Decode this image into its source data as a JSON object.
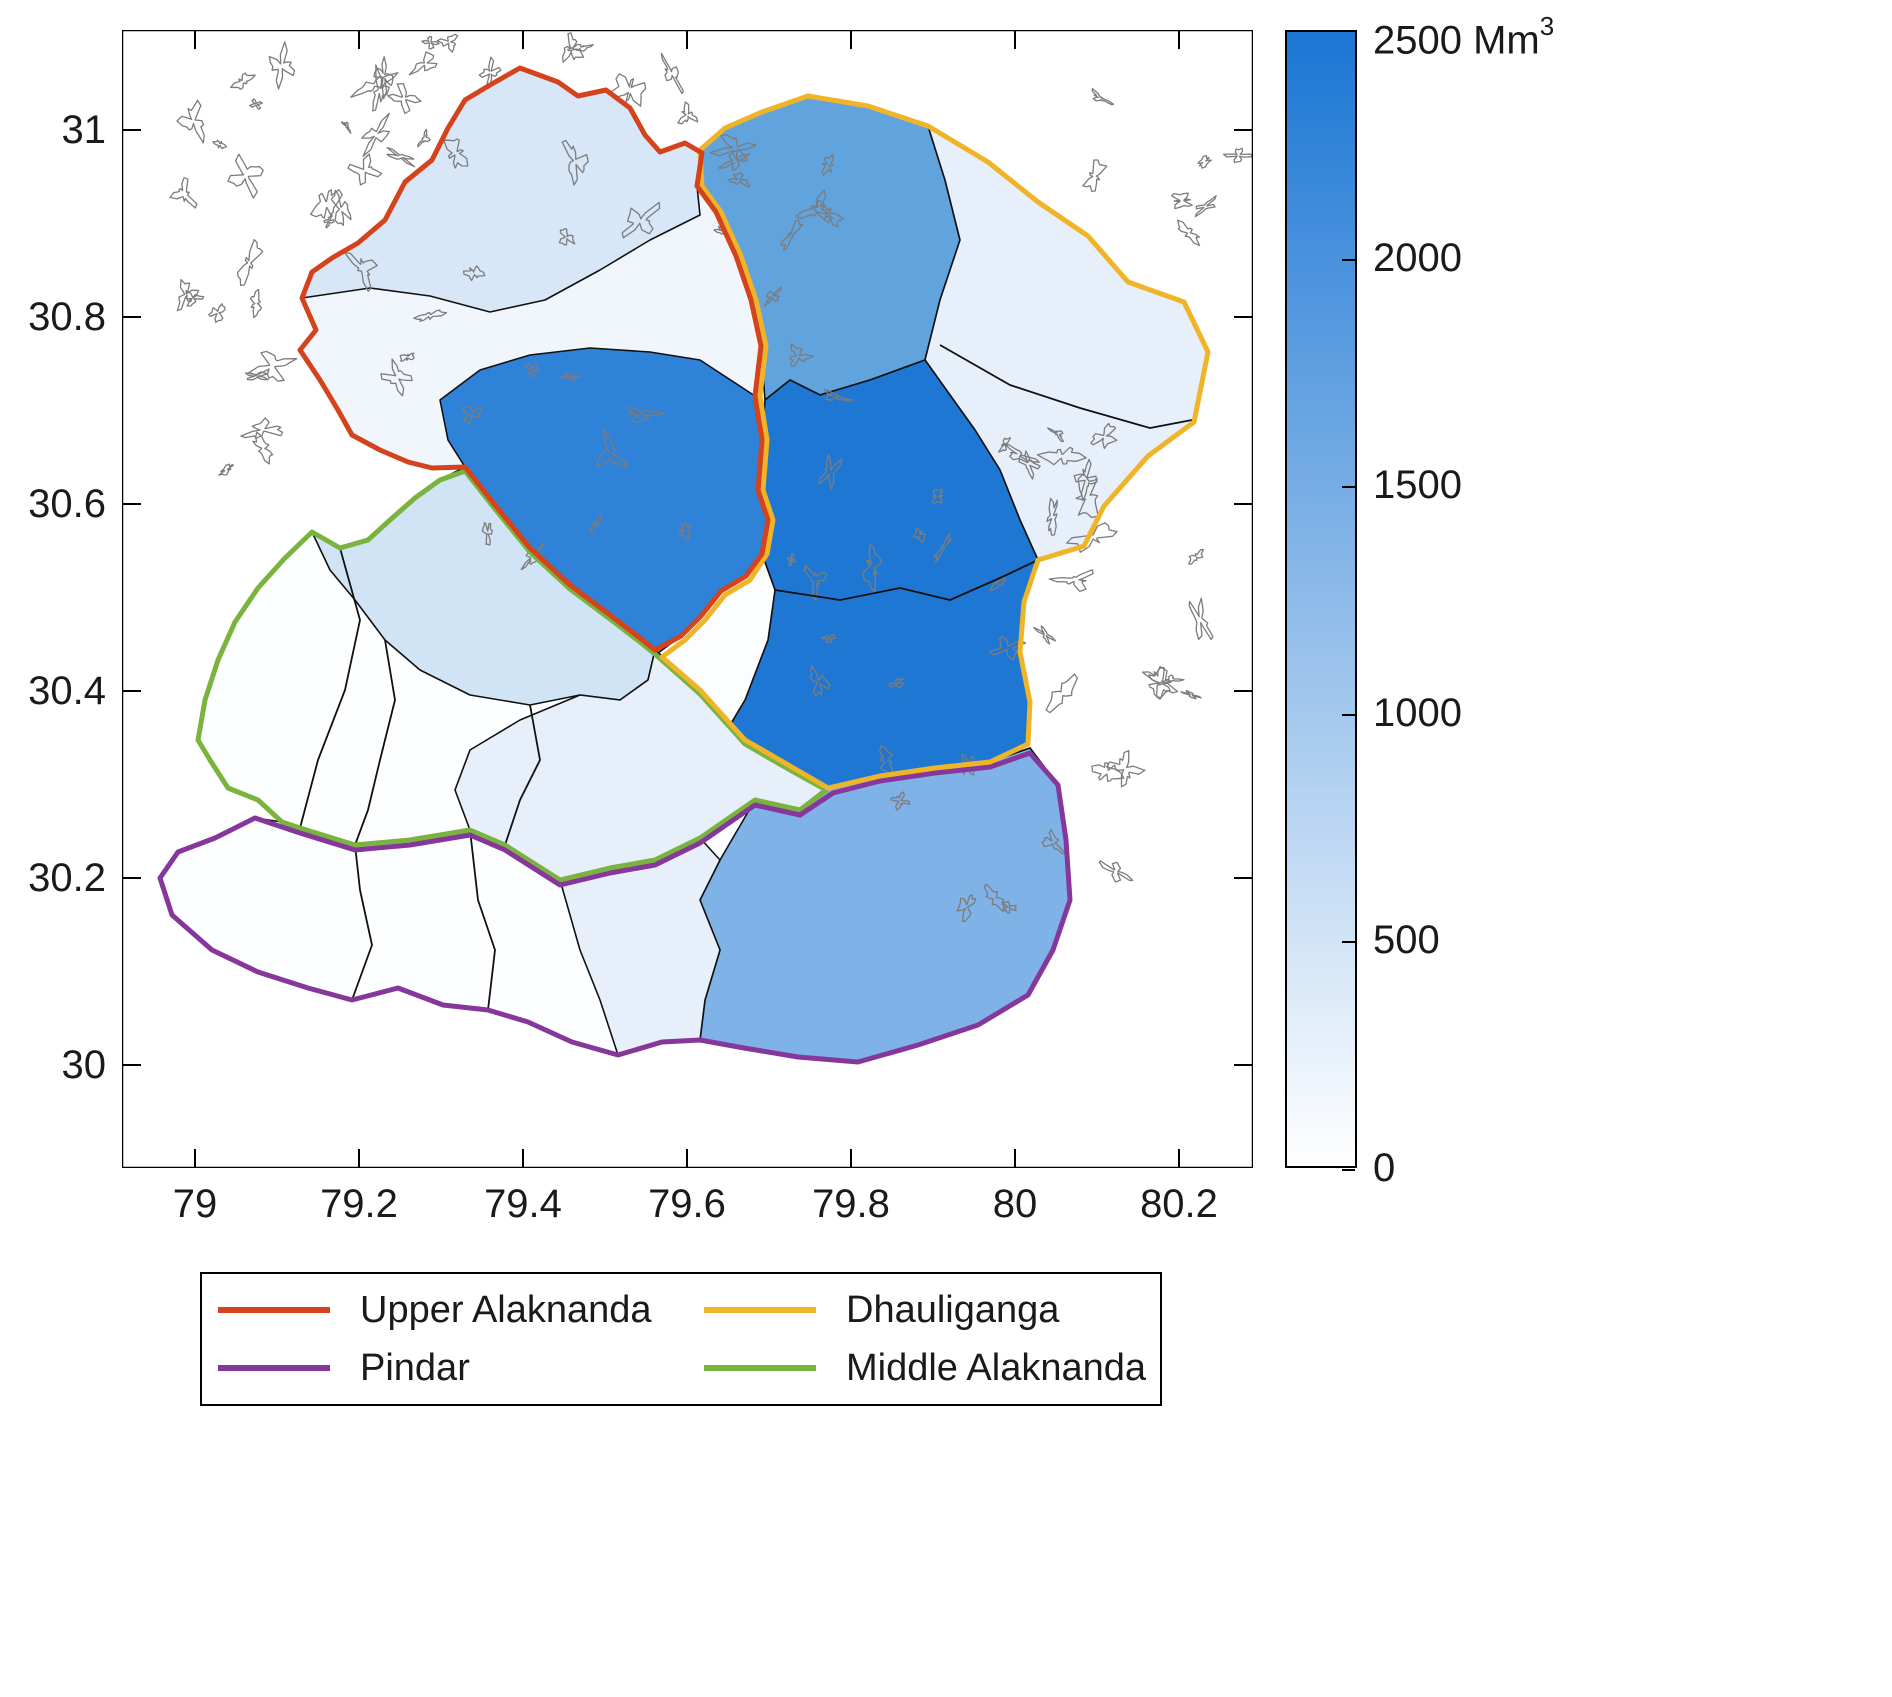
{
  "axes": {
    "x_tick_labels": [
      "79",
      "79.2",
      "79.4",
      "79.6",
      "79.8",
      "80",
      "80.2"
    ],
    "y_tick_labels": [
      "31",
      "30.8",
      "30.6",
      "30.4",
      "30.2",
      "30"
    ]
  },
  "colorbar": {
    "max_value": "2500",
    "unit": "Mm",
    "unit_exponent": "3",
    "tick_labels": [
      "2000",
      "1500",
      "1000",
      "500",
      "0"
    ],
    "min": 0,
    "max": 2500,
    "gradient_low": "#ffffff",
    "gradient_high": "#1b76d4"
  },
  "legend": {
    "items": [
      {
        "label": "Upper Alaknanda",
        "color": "#d5431d"
      },
      {
        "label": "Dhauliganga",
        "color": "#f0b428"
      },
      {
        "label": "Pindar",
        "color": "#86379b"
      },
      {
        "label": "Middle Alaknanda",
        "color": "#7ab33e"
      }
    ]
  },
  "chart_data": {
    "type": "choropleth_map",
    "description": "Map of glacierized sub-basins shaded by volume (Mm3) with four major basin outlines and glacier outlines overlaid",
    "x_axis": {
      "tick_values": [
        79,
        79.2,
        79.4,
        79.6,
        79.8,
        80,
        80.2
      ],
      "unit": "degrees longitude"
    },
    "y_axis": {
      "tick_values": [
        31,
        30.8,
        30.6,
        30.4,
        30.2,
        30
      ],
      "unit": "degrees latitude"
    },
    "colorbar_range": [
      0,
      2500
    ],
    "colorbar_unit": "Mm3",
    "colormap": "white-to-blue",
    "basins": [
      {
        "name": "Upper Alaknanda",
        "outline_color": "#d5431d",
        "subbasin_values_est_Mm3": [
          450,
          150,
          2250
        ]
      },
      {
        "name": "Dhauliganga",
        "outline_color": "#f0b428",
        "subbasin_values_est_Mm3": [
          1800,
          300,
          2400,
          2300,
          50
        ]
      },
      {
        "name": "Middle Alaknanda",
        "outline_color": "#7ab33e",
        "subbasin_values_est_Mm3": [
          500,
          300,
          50,
          50,
          50
        ]
      },
      {
        "name": "Pindar",
        "outline_color": "#86379b",
        "subbasin_values_est_Mm3": [
          1450,
          300,
          50
        ]
      }
    ],
    "overlay": "glacier outlines (thin grey polygons)"
  }
}
